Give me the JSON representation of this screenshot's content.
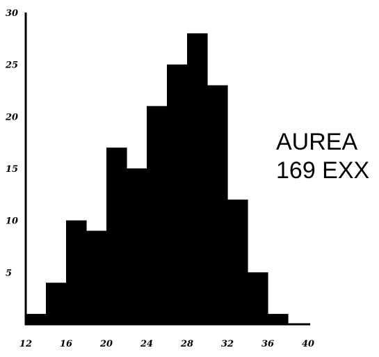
{
  "chart_data": {
    "type": "bar",
    "title": "",
    "xlabel": "",
    "ylabel": "",
    "bin_edges": [
      12,
      14,
      16,
      18,
      20,
      22,
      24,
      26,
      28,
      30,
      32,
      34,
      36,
      38
    ],
    "values": [
      1,
      4,
      10,
      9,
      17,
      15,
      21,
      25,
      28,
      23,
      12,
      5,
      1
    ],
    "xlim": [
      12,
      40
    ],
    "ylim": [
      0,
      30
    ],
    "x_ticks": [
      "12",
      "16",
      "20",
      "24",
      "28",
      "32",
      "36",
      "40"
    ],
    "y_ticks": [
      "5",
      "10",
      "15",
      "20",
      "25",
      "30"
    ],
    "annotation": [
      "AUREA",
      "169 EXX"
    ],
    "grid": false,
    "bar_color": "#000000"
  }
}
